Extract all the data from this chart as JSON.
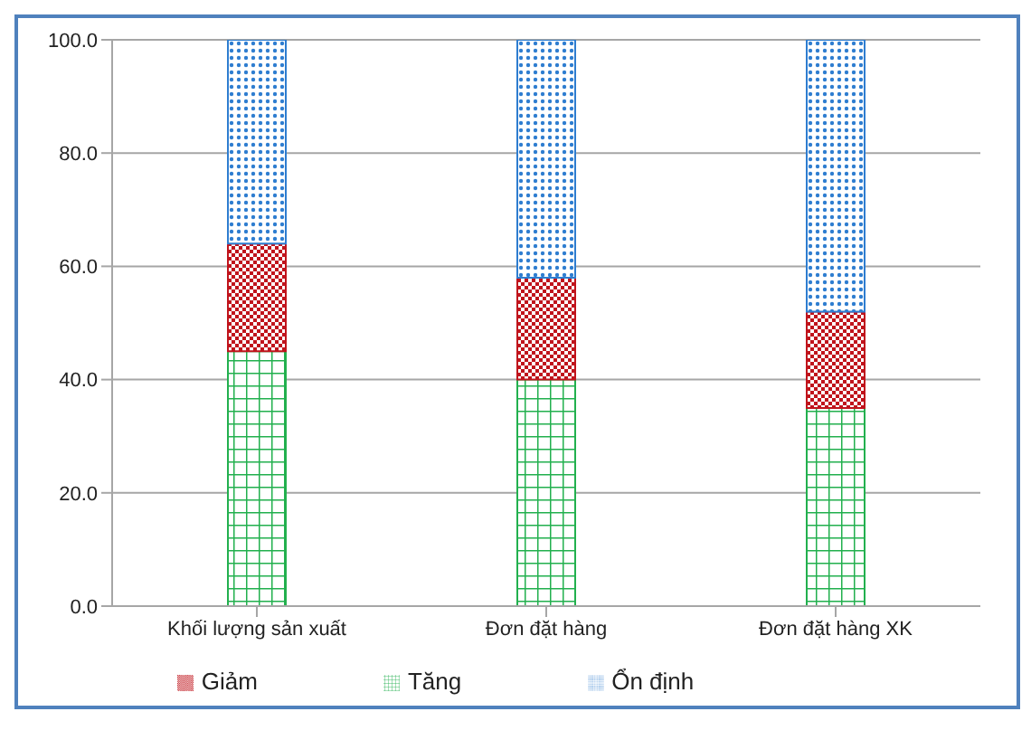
{
  "chart_data": {
    "type": "bar",
    "stacked": true,
    "categories": [
      "Khối lượng sản xuất",
      "Đơn đặt hàng",
      "Đơn đặt hàng XK"
    ],
    "series": [
      {
        "name": "Tăng",
        "color": "#22b04e",
        "values": [
          45,
          40,
          35
        ]
      },
      {
        "name": "Giảm",
        "color": "#c0141c",
        "values": [
          19,
          18,
          17
        ]
      },
      {
        "name": "Ổn định",
        "color": "#2e7dd0",
        "values": [
          36,
          42,
          48
        ]
      }
    ],
    "ylim": [
      0,
      100
    ],
    "yticks": [
      {
        "value": 0,
        "label": "0.0"
      },
      {
        "value": 20,
        "label": "20.0"
      },
      {
        "value": 40,
        "label": "40.0"
      },
      {
        "value": 60,
        "label": "60.0"
      },
      {
        "value": 80,
        "label": "80.0"
      },
      {
        "value": 100,
        "label": "100.0"
      }
    ],
    "grid": "y",
    "legend": "bottom"
  }
}
